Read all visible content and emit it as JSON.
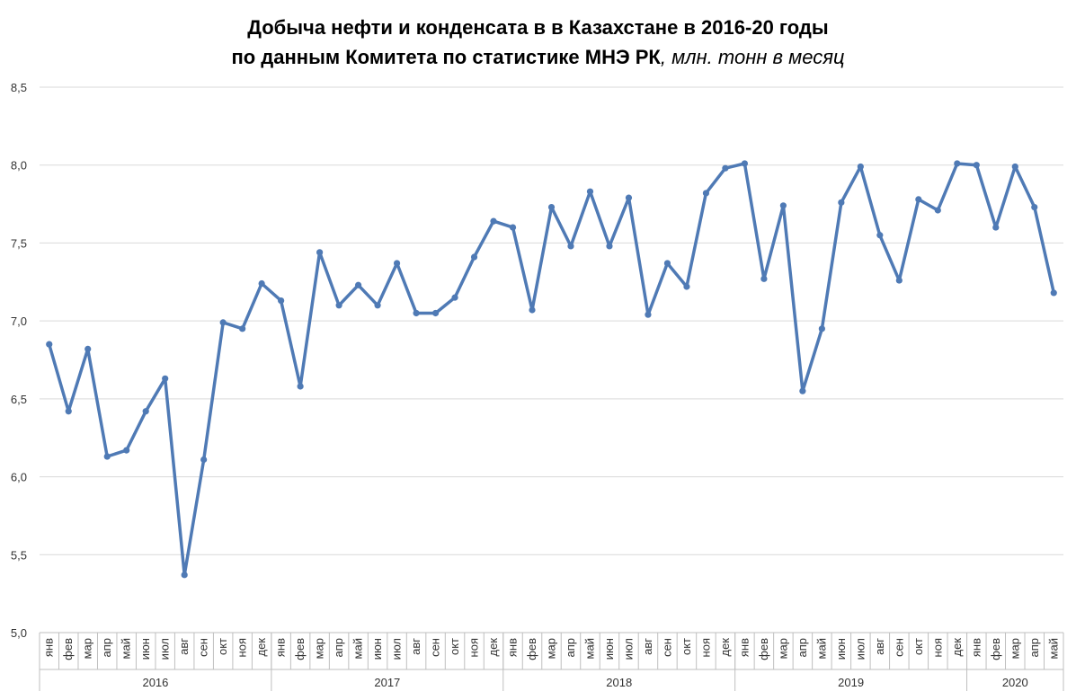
{
  "chart_data": {
    "type": "line",
    "title": "Добыча нефти и конденсата в в Казахстане в 2016-20 годы",
    "subtitle": "по данным Комитета по статистике МНЭ РК",
    "unit_label": ", млн. тонн в месяц",
    "ylim": [
      5.0,
      8.5
    ],
    "yticks": [
      "5,0",
      "5,5",
      "6,0",
      "6,5",
      "7,0",
      "7,5",
      "8,0",
      "8,5"
    ],
    "ytick_values": [
      5.0,
      5.5,
      6.0,
      6.5,
      7.0,
      7.5,
      8.0,
      8.5
    ],
    "grid": true,
    "legend": "none",
    "line_color": "#4f7ab5",
    "year_groups": [
      {
        "year": "2016",
        "months": [
          "янв",
          "фев",
          "мар",
          "апр",
          "май",
          "июн",
          "июл",
          "авг",
          "сен",
          "окт",
          "ноя",
          "дек"
        ]
      },
      {
        "year": "2017",
        "months": [
          "янв",
          "фев",
          "мар",
          "апр",
          "май",
          "июн",
          "июл",
          "авг",
          "сен",
          "окт",
          "ноя",
          "дек"
        ]
      },
      {
        "year": "2018",
        "months": [
          "янв",
          "фев",
          "мар",
          "апр",
          "май",
          "июн",
          "июл",
          "авг",
          "сен",
          "окт",
          "ноя",
          "дек"
        ]
      },
      {
        "year": "2019",
        "months": [
          "янв",
          "фев",
          "мар",
          "апр",
          "май",
          "июн",
          "июл",
          "авг",
          "сен",
          "окт",
          "ноя",
          "дек"
        ]
      },
      {
        "year": "2020",
        "months": [
          "янв",
          "фев",
          "мар",
          "апр",
          "май"
        ]
      }
    ],
    "values": [
      6.85,
      6.42,
      6.82,
      6.13,
      6.17,
      6.42,
      6.63,
      5.37,
      6.11,
      6.99,
      6.95,
      7.24,
      7.13,
      6.58,
      7.44,
      7.1,
      7.23,
      7.1,
      7.37,
      7.05,
      7.05,
      7.15,
      7.41,
      7.64,
      7.6,
      7.07,
      7.73,
      7.48,
      7.83,
      7.48,
      7.79,
      7.04,
      7.37,
      7.22,
      7.82,
      7.98,
      8.01,
      7.27,
      7.74,
      6.55,
      6.95,
      7.76,
      7.99,
      7.55,
      7.26,
      7.78,
      7.71,
      8.01,
      8.0,
      7.6,
      7.99,
      7.73,
      7.18
    ]
  }
}
